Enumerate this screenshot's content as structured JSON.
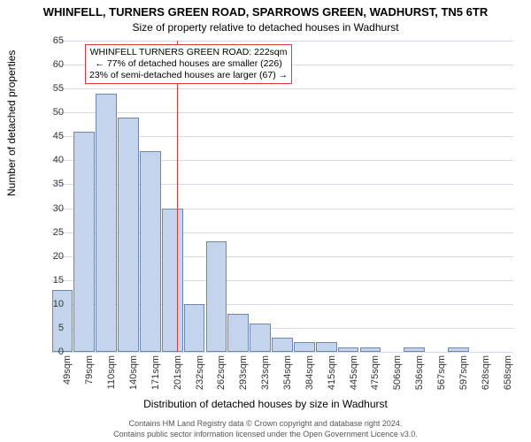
{
  "title": {
    "line1": "WHINFELL, TURNERS GREEN ROAD, SPARROWS GREEN, WADHURST, TN5 6TR",
    "line2": "Size of property relative to detached houses in Wadhurst"
  },
  "chart": {
    "type": "histogram",
    "background_color": "#ffffff",
    "grid_color": "#d3dbe6",
    "bar_fill": "#c4d4ec",
    "bar_border": "#6f86ad",
    "bar_border_width": 1,
    "ylim": [
      0,
      65
    ],
    "ytick_step": 5,
    "yticks": [
      0,
      5,
      10,
      15,
      20,
      25,
      30,
      35,
      40,
      45,
      50,
      55,
      60,
      65
    ],
    "categories": [
      "49sqm",
      "79sqm",
      "110sqm",
      "140sqm",
      "171sqm",
      "201sqm",
      "232sqm",
      "262sqm",
      "293sqm",
      "323sqm",
      "354sqm",
      "384sqm",
      "415sqm",
      "445sqm",
      "475sqm",
      "506sqm",
      "536sqm",
      "567sqm",
      "597sqm",
      "628sqm",
      "658sqm"
    ],
    "values": [
      13,
      46,
      54,
      49,
      42,
      30,
      10,
      23,
      8,
      6,
      3,
      2,
      2,
      1,
      1,
      0,
      1,
      0,
      1,
      0,
      0
    ],
    "bar_width_ratio": 0.95,
    "xlabel": "Distribution of detached houses by size in Wadhurst",
    "ylabel": "Number of detached properties",
    "label_fontsize": 12,
    "tick_fontsize": 11,
    "marker": {
      "x_index": 5.7,
      "color": "#d93a3a",
      "box_border": "#d93a3a",
      "lines": [
        "WHINFELL TURNERS GREEN ROAD: 222sqm",
        "← 77% of detached houses are smaller (226)",
        "23% of semi-detached houses are larger (67) →"
      ]
    }
  },
  "footer": {
    "line1": "Contains HM Land Registry data © Crown copyright and database right 2024.",
    "line2": "Contains public sector information licensed under the Open Government Licence v3.0."
  }
}
